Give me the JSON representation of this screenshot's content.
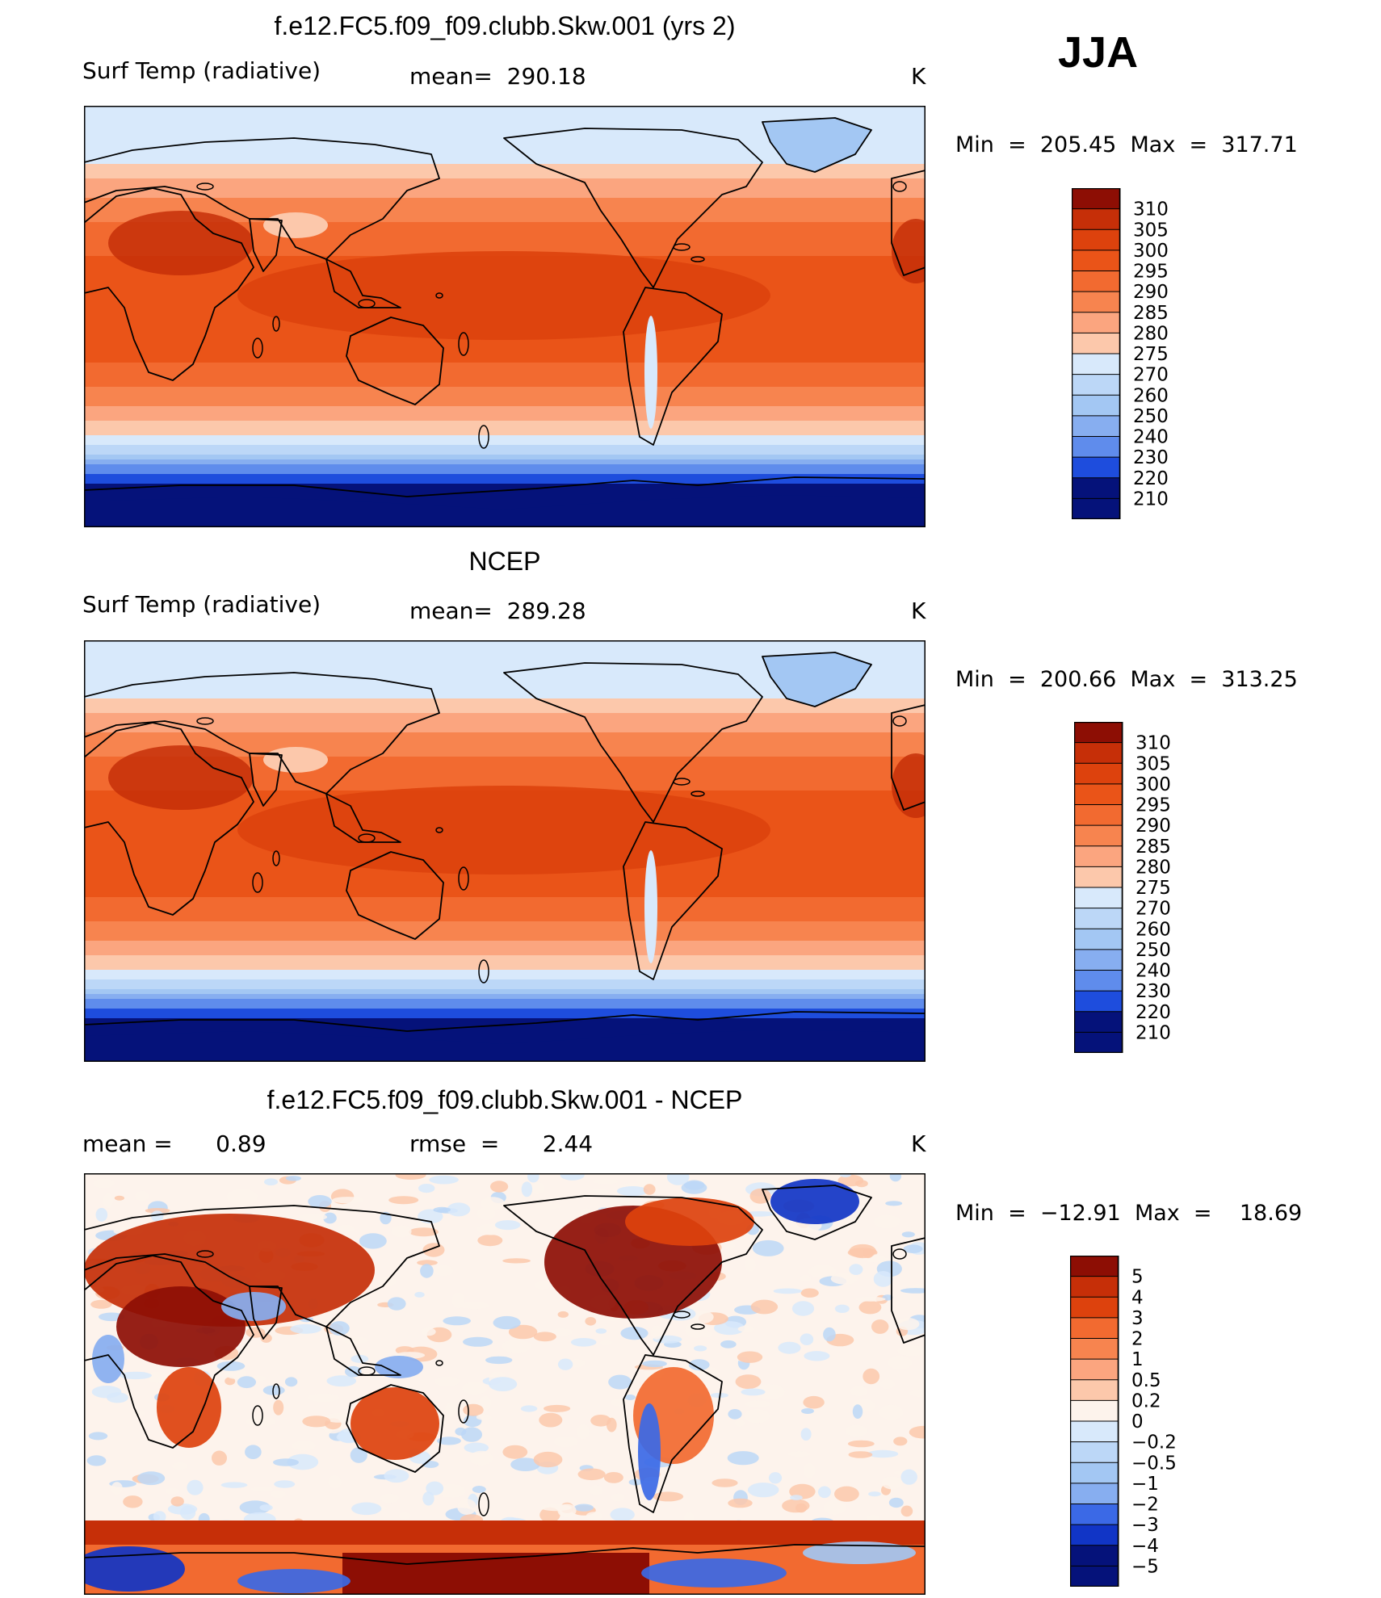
{
  "season": "JJA",
  "colors": {
    "warm": [
      "#fbe6d6",
      "#fcc8ab",
      "#fba57f",
      "#f7844f",
      "#f26a30",
      "#ea5418",
      "#dd420d",
      "#c62f08",
      "#8d0e04"
    ],
    "cool": [
      "#d8e9fb",
      "#bcd7f7",
      "#a3c7f3",
      "#87aef0",
      "#5f8cec",
      "#3b69e6",
      "#1e4ddd",
      "#1135c6",
      "#0920a2",
      "#05127a"
    ],
    "neutral": "#fdf3ec",
    "outline": "#000000"
  },
  "chart_data": [
    {
      "type": "heatmap",
      "title": "f.e12.FC5.f09_f09.clubb.Skw.001 (yrs 2)",
      "left_label": "Surf Temp (radiative)",
      "center_label": "mean=  290.18",
      "units": "K",
      "min_max": "Min  =  205.45  Max  =  317.71",
      "legend_levels": [
        "310",
        "305",
        "300",
        "295",
        "290",
        "285",
        "280",
        "275",
        "270",
        "260",
        "250",
        "240",
        "230",
        "220",
        "210"
      ]
    },
    {
      "type": "heatmap",
      "title": "NCEP",
      "left_label": "Surf Temp (radiative)",
      "center_label": "mean=  289.28",
      "units": "K",
      "min_max": "Min  =  200.66  Max  =  313.25",
      "legend_levels": [
        "310",
        "305",
        "300",
        "295",
        "290",
        "285",
        "280",
        "275",
        "270",
        "260",
        "250",
        "240",
        "230",
        "220",
        "210"
      ]
    },
    {
      "type": "heatmap",
      "title": "f.e12.FC5.f09_f09.clubb.Skw.001 - NCEP",
      "left_label": "mean =      0.89",
      "center_label": "rmse  =      2.44",
      "units": "K",
      "min_max": "Min  =  −12.91  Max  =    18.69",
      "legend_levels": [
        "5",
        "4",
        "3",
        "2",
        "1",
        "0.5",
        "0.2",
        "0",
        "−0.2",
        "−0.5",
        "−1",
        "−2",
        "−3",
        "−4",
        "−5"
      ]
    }
  ]
}
